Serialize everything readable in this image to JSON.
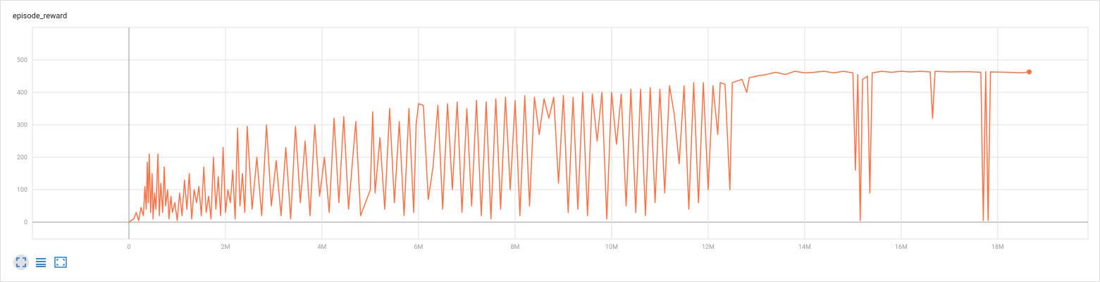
{
  "chart_data": {
    "type": "line",
    "title": "episode_reward",
    "xlim": [
      -2000000,
      19870000
    ],
    "ylim": [
      -52,
      600
    ],
    "xticks": [
      {
        "value": 0,
        "label": "0"
      },
      {
        "value": 2000000,
        "label": "2M"
      },
      {
        "value": 4000000,
        "label": "4M"
      },
      {
        "value": 6000000,
        "label": "6M"
      },
      {
        "value": 8000000,
        "label": "8M"
      },
      {
        "value": 10000000,
        "label": "10M"
      },
      {
        "value": 12000000,
        "label": "12M"
      },
      {
        "value": 14000000,
        "label": "14M"
      },
      {
        "value": 16000000,
        "label": "16M"
      },
      {
        "value": 18000000,
        "label": "18M"
      }
    ],
    "yticks": [
      0,
      100,
      200,
      300,
      400,
      500
    ],
    "grid": true,
    "series": [
      {
        "name": "episode_reward",
        "color": "#ff7043",
        "x": [
          0,
          50000,
          100000,
          150000,
          200000,
          250000,
          300000,
          330000,
          360000,
          380000,
          400000,
          420000,
          450000,
          480000,
          500000,
          530000,
          560000,
          600000,
          630000,
          660000,
          700000,
          730000,
          760000,
          800000,
          830000,
          870000,
          900000,
          950000,
          1000000,
          1050000,
          1100000,
          1150000,
          1200000,
          1250000,
          1300000,
          1350000,
          1400000,
          1450000,
          1500000,
          1550000,
          1600000,
          1650000,
          1700000,
          1750000,
          1800000,
          1850000,
          1900000,
          1950000,
          2000000,
          2050000,
          2100000,
          2150000,
          2200000,
          2250000,
          2300000,
          2350000,
          2400000,
          2450000,
          2550000,
          2650000,
          2750000,
          2850000,
          2950000,
          3050000,
          3150000,
          3250000,
          3350000,
          3450000,
          3550000,
          3650000,
          3750000,
          3850000,
          3950000,
          4050000,
          4150000,
          4250000,
          4350000,
          4450000,
          4550000,
          4700000,
          4800000,
          5000000,
          5050000,
          5100000,
          5200000,
          5300000,
          5400000,
          5500000,
          5600000,
          5700000,
          5800000,
          5900000,
          5950000,
          6000000,
          6100000,
          6200000,
          6300000,
          6400000,
          6500000,
          6600000,
          6700000,
          6800000,
          6900000,
          7000000,
          7100000,
          7200000,
          7300000,
          7400000,
          7500000,
          7600000,
          7700000,
          7800000,
          7900000,
          8000000,
          8100000,
          8200000,
          8300000,
          8400000,
          8500000,
          8600000,
          8700000,
          8800000,
          8900000,
          9000000,
          9100000,
          9200000,
          9300000,
          9400000,
          9500000,
          9600000,
          9700000,
          9800000,
          9900000,
          10000000,
          10100000,
          10200000,
          10300000,
          10400000,
          10500000,
          10600000,
          10700000,
          10800000,
          10900000,
          11000000,
          11100000,
          11200000,
          11300000,
          11400000,
          11500000,
          11600000,
          11700000,
          11800000,
          11900000,
          12000000,
          12100000,
          12200000,
          12250000,
          12350000,
          12450000,
          12500000,
          12600000,
          12700000,
          12800000,
          12850000,
          13000000,
          13200000,
          13400000,
          13600000,
          13800000,
          14000000,
          14200000,
          14400000,
          14600000,
          14800000,
          15000000,
          15050000,
          15100000,
          15150000,
          15200000,
          15300000,
          15350000,
          15400000,
          15600000,
          15800000,
          16000000,
          16200000,
          16400000,
          16600000,
          16650000,
          16700000,
          17000000,
          17400000,
          17650000,
          17700000,
          17750000,
          17800000,
          17850000,
          18200000,
          18500000,
          18650000
        ],
        "values": [
          0,
          5,
          10,
          30,
          5,
          45,
          20,
          110,
          40,
          185,
          60,
          210,
          30,
          150,
          10,
          90,
          40,
          210,
          20,
          120,
          30,
          170,
          50,
          100,
          10,
          80,
          30,
          60,
          5,
          90,
          20,
          130,
          40,
          150,
          10,
          100,
          60,
          110,
          20,
          170,
          30,
          80,
          10,
          200,
          40,
          140,
          20,
          230,
          30,
          100,
          60,
          160,
          10,
          290,
          50,
          150,
          30,
          295,
          40,
          200,
          20,
          300,
          50,
          190,
          20,
          230,
          10,
          295,
          60,
          250,
          20,
          300,
          80,
          200,
          30,
          320,
          60,
          325,
          40,
          310,
          20,
          100,
          340,
          90,
          260,
          40,
          350,
          60,
          310,
          20,
          350,
          30,
          300,
          365,
          360,
          70,
          170,
          360,
          40,
          365,
          100,
          370,
          30,
          350,
          50,
          375,
          20,
          370,
          10,
          380,
          40,
          385,
          100,
          375,
          20,
          390,
          50,
          385,
          270,
          380,
          320,
          385,
          120,
          390,
          30,
          385,
          40,
          400,
          20,
          395,
          250,
          400,
          10,
          400,
          240,
          395,
          50,
          410,
          30,
          410,
          20,
          415,
          60,
          410,
          90,
          420,
          330,
          180,
          420,
          40,
          430,
          60,
          430,
          100,
          420,
          270,
          430,
          425,
          100,
          430,
          435,
          440,
          400,
          445,
          450,
          455,
          462,
          455,
          465,
          460,
          462,
          465,
          460,
          465,
          460,
          160,
          455,
          5,
          440,
          450,
          90,
          460,
          465,
          462,
          465,
          463,
          465,
          463,
          320,
          465,
          463,
          464,
          462,
          5,
          464,
          5,
          463,
          462,
          460,
          463
        ]
      }
    ]
  }
}
